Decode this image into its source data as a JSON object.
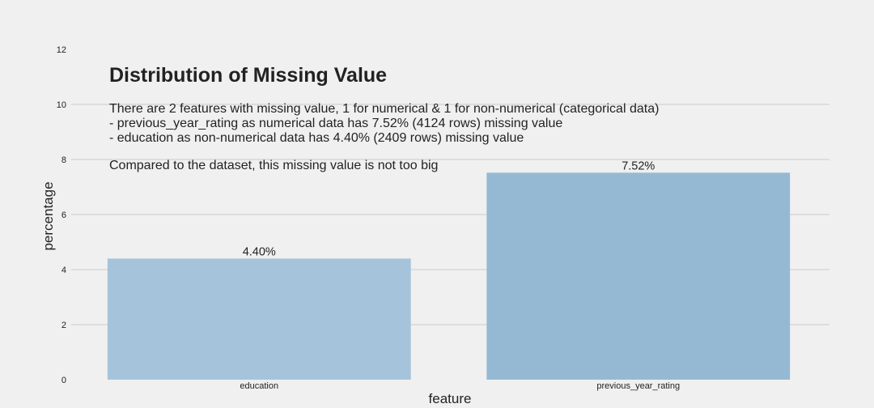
{
  "chart_data": {
    "type": "bar",
    "title": "Distribution of Missing Value",
    "description_lines": [
      "There are 2 features with missing value, 1 for numerical & 1 for non-numerical (categorical data)",
      "- previous_year_rating as numerical data has 7.52% (4124 rows) missing value",
      "- education as non-numerical data has 4.40% (2409 rows) missing value",
      "Compared to the dataset, this missing value is not too big"
    ],
    "xlabel": "feature",
    "ylabel": "percentage",
    "categories": [
      "education",
      "previous_year_rating"
    ],
    "values": [
      4.4,
      7.52
    ],
    "data_labels": [
      "4.40%",
      "7.52%"
    ],
    "bar_colors": [
      "#a5c4db",
      "#96b9d3"
    ],
    "ylim": [
      0,
      12
    ],
    "yticks": [
      "0",
      "2",
      "4",
      "6",
      "8",
      "10",
      "12"
    ],
    "grid": "horizontal",
    "legend": "none"
  },
  "colors": {
    "background": "#f0f0f0",
    "grid": "#cbcbcb",
    "text": "#222222"
  }
}
